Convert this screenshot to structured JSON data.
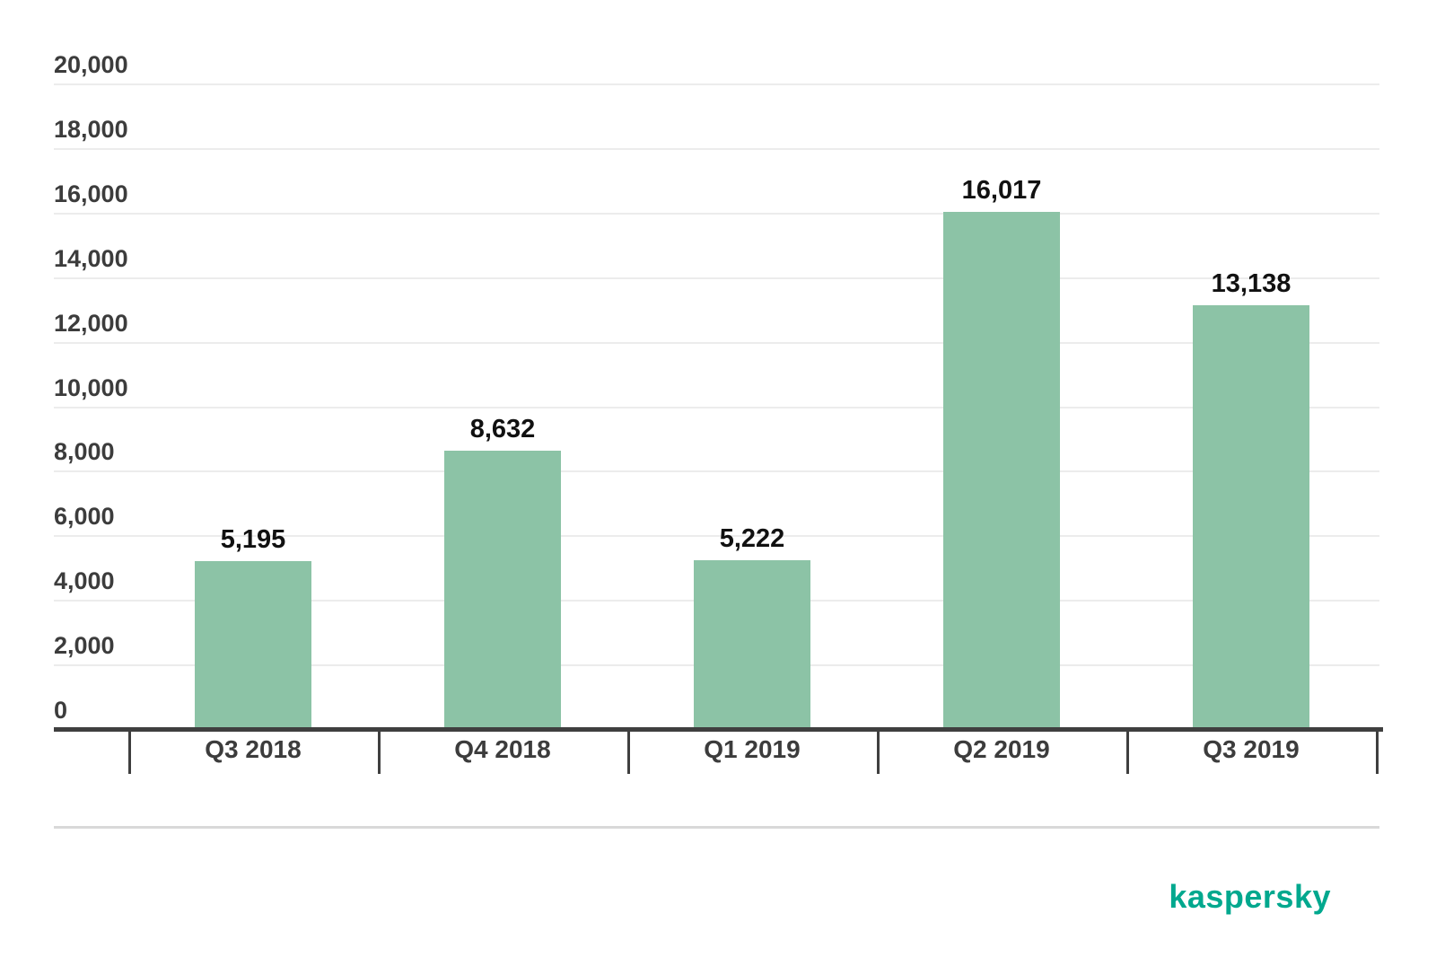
{
  "chart_data": {
    "type": "bar",
    "categories": [
      "Q3 2018",
      "Q4 2018",
      "Q1 2019",
      "Q2 2019",
      "Q3 2019"
    ],
    "values": [
      5195,
      8632,
      5222,
      16017,
      13138
    ],
    "value_labels": [
      "5,195",
      "8,632",
      "5,222",
      "16,017",
      "13,138"
    ],
    "title": "",
    "xlabel": "",
    "ylabel": "",
    "ylim": [
      0,
      20000
    ],
    "y_ticks": [
      0,
      2000,
      4000,
      6000,
      8000,
      10000,
      12000,
      14000,
      16000,
      18000,
      20000
    ],
    "y_tick_labels": [
      "0",
      "2,000",
      "4,000",
      "6,000",
      "8,000",
      "10,000",
      "12,000",
      "14,000",
      "16,000",
      "18,000",
      "20,000"
    ],
    "grid": true,
    "legend": "none",
    "bar_color": "#8cc3a6"
  },
  "colors": {
    "background": "#ffffff",
    "bar": "#8cc3a6",
    "axis": "#3f3f3f",
    "gridline": "#ececec",
    "axis_label": "#3c3c3c",
    "value_label": "#111111",
    "divider": "#d9d9d9",
    "brand": "#00a88e"
  },
  "branding": {
    "logo_text": "kaspersky"
  }
}
